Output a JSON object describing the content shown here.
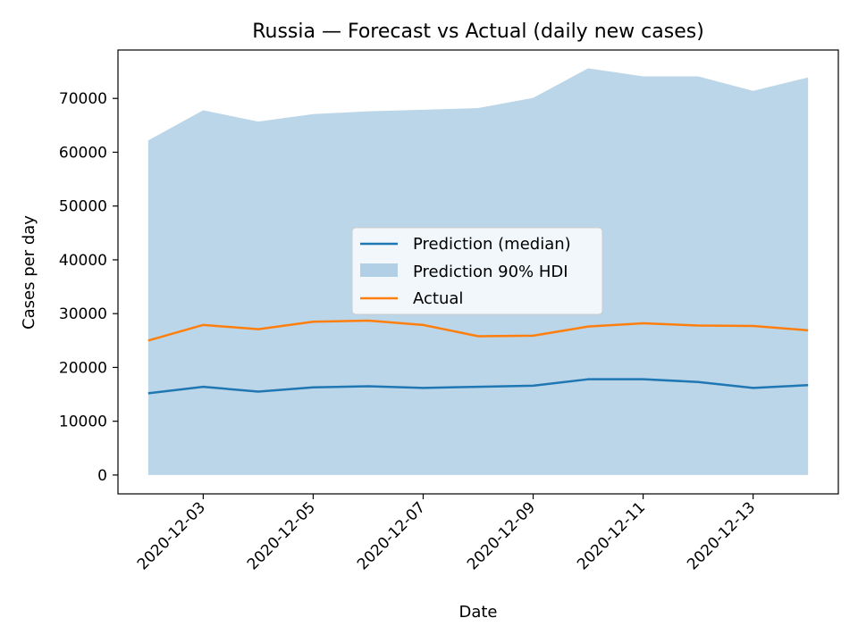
{
  "chart_data": {
    "type": "line",
    "title": "Russia — Forecast vs Actual (daily new cases)",
    "xlabel": "Date",
    "ylabel": "Cases per day",
    "x": [
      "2020-12-02",
      "2020-12-03",
      "2020-12-04",
      "2020-12-05",
      "2020-12-06",
      "2020-12-07",
      "2020-12-08",
      "2020-12-09",
      "2020-12-10",
      "2020-12-11",
      "2020-12-12",
      "2020-12-13",
      "2020-12-14"
    ],
    "x_tick_labels": [
      "2020-12-03",
      "2020-12-05",
      "2020-12-07",
      "2020-12-09",
      "2020-12-11",
      "2020-12-13"
    ],
    "y_ticks": [
      0,
      10000,
      20000,
      30000,
      40000,
      50000,
      60000,
      70000
    ],
    "ylim": [
      -3500,
      79000
    ],
    "series": [
      {
        "name": "Prediction (median)",
        "kind": "line",
        "color": "#1f77b4",
        "values": [
          15200,
          16400,
          15500,
          16300,
          16500,
          16200,
          16400,
          16600,
          17800,
          17800,
          17300,
          16200,
          16700
        ]
      },
      {
        "name": "Prediction 90% HDI",
        "kind": "band",
        "color": "#1f77b4",
        "opacity": 0.3,
        "lower": [
          0,
          0,
          0,
          0,
          0,
          0,
          0,
          0,
          0,
          0,
          0,
          0,
          0
        ],
        "upper": [
          62200,
          67800,
          65700,
          67100,
          67600,
          67900,
          68200,
          70100,
          75600,
          74100,
          74100,
          71400,
          73900
        ]
      },
      {
        "name": "Actual",
        "kind": "line",
        "color": "#ff7f0e",
        "values": [
          25000,
          27900,
          27100,
          28500,
          28700,
          27900,
          25800,
          25900,
          27600,
          28200,
          27800,
          27700,
          26900
        ]
      }
    ],
    "legend_position": "center",
    "grid": false
  }
}
